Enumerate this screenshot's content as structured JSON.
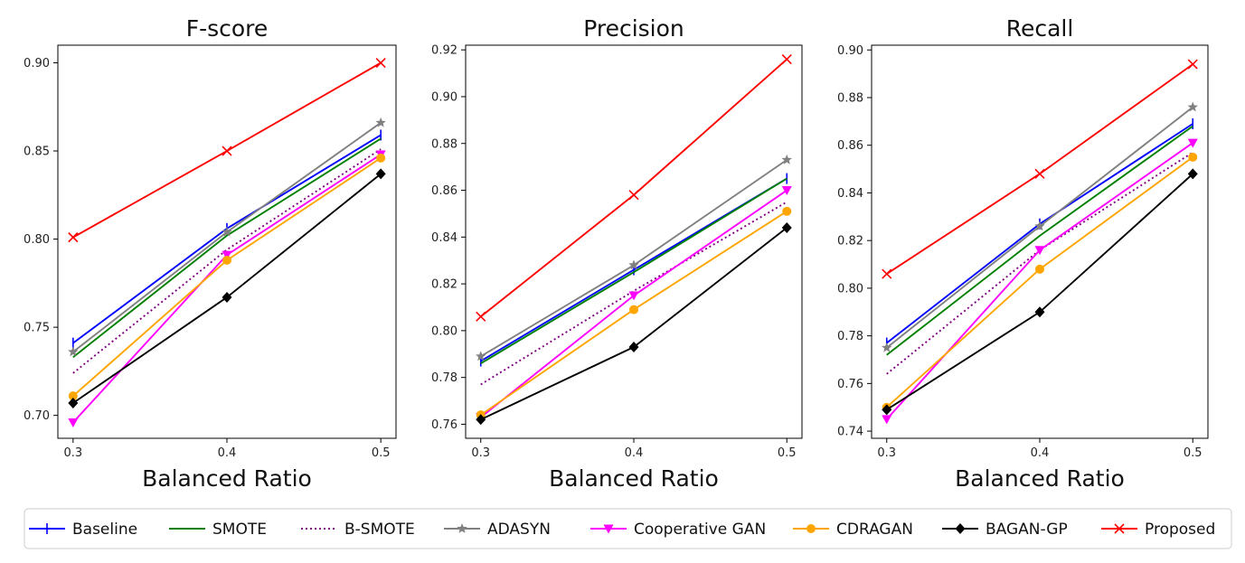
{
  "chart_data": [
    {
      "type": "line",
      "title": "F-score",
      "xlabel": "Balanced Ratio",
      "ylabel": "",
      "x": [
        0.3,
        0.4,
        0.5
      ],
      "x_tick_labels": [
        "0.3",
        "0.4",
        "0.5"
      ],
      "ylim": [
        0.687,
        0.91
      ],
      "y_ticks": [
        0.7,
        0.75,
        0.8,
        0.85,
        0.9
      ],
      "y_tick_labels": [
        "0.70",
        "0.75",
        "0.80",
        "0.85",
        "0.90"
      ],
      "series": [
        {
          "name": "Baseline",
          "values": [
            0.741,
            0.806,
            0.859
          ]
        },
        {
          "name": "SMOTE",
          "values": [
            0.733,
            0.802,
            0.857
          ]
        },
        {
          "name": "B-SMOTE",
          "values": [
            0.724,
            0.794,
            0.851
          ]
        },
        {
          "name": "ADASYN",
          "values": [
            0.736,
            0.804,
            0.866
          ]
        },
        {
          "name": "Cooperative GAN",
          "values": [
            0.696,
            0.791,
            0.848
          ]
        },
        {
          "name": "CDRAGAN",
          "values": [
            0.711,
            0.788,
            0.846
          ]
        },
        {
          "name": "BAGAN-GP",
          "values": [
            0.707,
            0.767,
            0.837
          ]
        },
        {
          "name": "Proposed",
          "values": [
            0.801,
            0.85,
            0.9
          ]
        }
      ]
    },
    {
      "type": "line",
      "title": "Precision",
      "xlabel": "Balanced Ratio",
      "ylabel": "",
      "x": [
        0.3,
        0.4,
        0.5
      ],
      "x_tick_labels": [
        "0.3",
        "0.4",
        "0.5"
      ],
      "ylim": [
        0.754,
        0.922
      ],
      "y_ticks": [
        0.76,
        0.78,
        0.8,
        0.82,
        0.84,
        0.86,
        0.88,
        0.9,
        0.92
      ],
      "y_tick_labels": [
        "0.76",
        "0.78",
        "0.80",
        "0.82",
        "0.84",
        "0.86",
        "0.88",
        "0.90",
        "0.92"
      ],
      "series": [
        {
          "name": "Baseline",
          "values": [
            0.787,
            0.826,
            0.865
          ]
        },
        {
          "name": "SMOTE",
          "values": [
            0.786,
            0.825,
            0.865
          ]
        },
        {
          "name": "B-SMOTE",
          "values": [
            0.777,
            0.817,
            0.855
          ]
        },
        {
          "name": "ADASYN",
          "values": [
            0.789,
            0.828,
            0.873
          ]
        },
        {
          "name": "Cooperative GAN",
          "values": [
            0.763,
            0.815,
            0.86
          ]
        },
        {
          "name": "CDRAGAN",
          "values": [
            0.764,
            0.809,
            0.851
          ]
        },
        {
          "name": "BAGAN-GP",
          "values": [
            0.762,
            0.793,
            0.844
          ]
        },
        {
          "name": "Proposed",
          "values": [
            0.806,
            0.858,
            0.916
          ]
        }
      ]
    },
    {
      "type": "line",
      "title": "Recall",
      "xlabel": "Balanced Ratio",
      "ylabel": "",
      "x": [
        0.3,
        0.4,
        0.5
      ],
      "x_tick_labels": [
        "0.3",
        "0.4",
        "0.5"
      ],
      "ylim": [
        0.737,
        0.902
      ],
      "y_ticks": [
        0.74,
        0.76,
        0.78,
        0.8,
        0.82,
        0.84,
        0.86,
        0.88,
        0.9
      ],
      "y_tick_labels": [
        "0.74",
        "0.76",
        "0.78",
        "0.80",
        "0.82",
        "0.84",
        "0.86",
        "0.88",
        "0.90"
      ],
      "series": [
        {
          "name": "Baseline",
          "values": [
            0.777,
            0.827,
            0.869
          ]
        },
        {
          "name": "SMOTE",
          "values": [
            0.772,
            0.822,
            0.868
          ]
        },
        {
          "name": "B-SMOTE",
          "values": [
            0.764,
            0.816,
            0.857
          ]
        },
        {
          "name": "ADASYN",
          "values": [
            0.775,
            0.826,
            0.876
          ]
        },
        {
          "name": "Cooperative GAN",
          "values": [
            0.745,
            0.816,
            0.861
          ]
        },
        {
          "name": "CDRAGAN",
          "values": [
            0.75,
            0.808,
            0.855
          ]
        },
        {
          "name": "BAGAN-GP",
          "values": [
            0.749,
            0.79,
            0.848
          ]
        },
        {
          "name": "Proposed",
          "values": [
            0.806,
            0.848,
            0.894
          ]
        }
      ]
    }
  ],
  "series_styles": [
    {
      "name": "Baseline",
      "color": "#0000ff",
      "marker": "vline",
      "dash": ""
    },
    {
      "name": "SMOTE",
      "color": "#008000",
      "marker": "none",
      "dash": ""
    },
    {
      "name": "B-SMOTE",
      "color": "#800080",
      "marker": "none",
      "dash": "2,3"
    },
    {
      "name": "ADASYN",
      "color": "#808080",
      "marker": "star",
      "dash": ""
    },
    {
      "name": "Cooperative GAN",
      "color": "#ff00ff",
      "marker": "triangle-down",
      "dash": ""
    },
    {
      "name": "CDRAGAN",
      "color": "#ffa500",
      "marker": "circle",
      "dash": ""
    },
    {
      "name": "BAGAN-GP",
      "color": "#000000",
      "marker": "diamond",
      "dash": ""
    },
    {
      "name": "Proposed",
      "color": "#ff0000",
      "marker": "x",
      "dash": ""
    }
  ],
  "legend": {
    "placement": "bottom",
    "entries": [
      "Baseline",
      "SMOTE",
      "B-SMOTE",
      "ADASYN",
      "Cooperative GAN",
      "CDRAGAN",
      "BAGAN-GP",
      "Proposed"
    ]
  }
}
